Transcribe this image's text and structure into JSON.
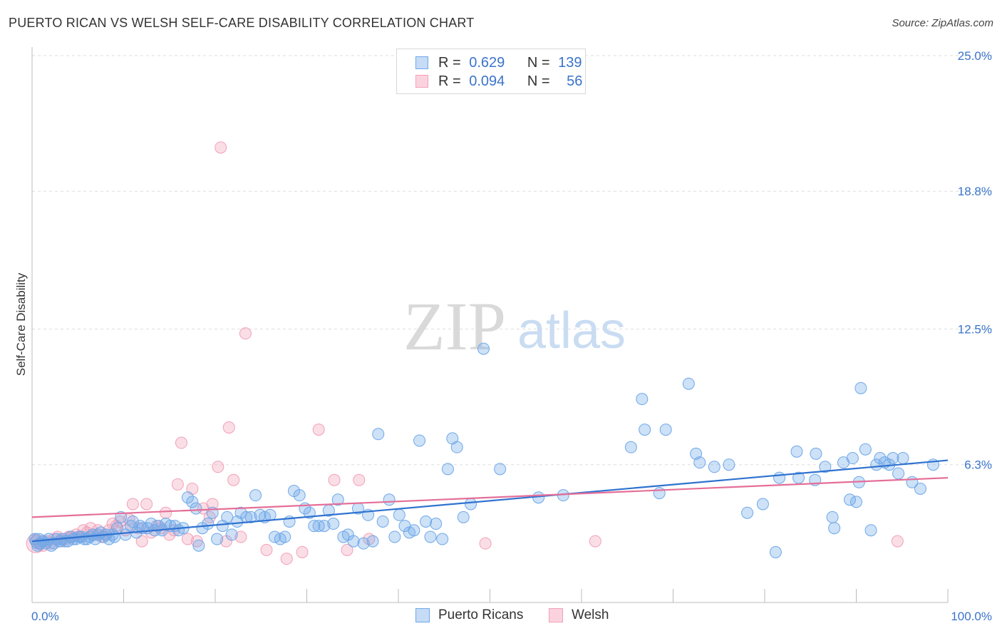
{
  "title": "PUERTO RICAN VS WELSH SELF-CARE DISABILITY CORRELATION CHART",
  "source": "Source: ZipAtlas.com",
  "watermark": {
    "zip": "ZIP",
    "atlas": "atlas"
  },
  "legend_top": [
    {
      "r_label": "R =",
      "r_value": "0.629",
      "n_label": "N =",
      "n_value": "139",
      "color": "#6fa8e8"
    },
    {
      "r_label": "R =",
      "r_value": "0.094",
      "n_label": "N =",
      "n_value": "56",
      "color": "#f2a0b8"
    }
  ],
  "legend_bottom": [
    {
      "label": "Puerto Ricans",
      "color": "#6fa8e8"
    },
    {
      "label": "Welsh",
      "color": "#f2a0b8"
    }
  ],
  "chart_data": {
    "type": "scatter",
    "title": "PUERTO RICAN VS WELSH SELF-CARE DISABILITY CORRELATION CHART",
    "xlabel": "",
    "ylabel": "Self-Care Disability",
    "xlim": [
      0,
      100
    ],
    "ylim": [
      0,
      25
    ],
    "x_tick_labels": [
      "0.0%",
      "100.0%"
    ],
    "y_ticks": [
      6.3,
      12.5,
      18.8,
      25.0
    ],
    "y_tick_labels": [
      "6.3%",
      "12.5%",
      "18.8%",
      "25.0%"
    ],
    "grid": true,
    "series": [
      {
        "name": "Puerto Ricans",
        "color": "#6fa8e8",
        "trend_color": "#2f72d0",
        "trend": [
          [
            0,
            2.8
          ],
          [
            100,
            6.5
          ]
        ],
        "points": [
          [
            0.3,
            2.9
          ],
          [
            0.6,
            2.6
          ],
          [
            0.9,
            2.7
          ],
          [
            1.2,
            2.8
          ],
          [
            1.5,
            2.7
          ],
          [
            1.8,
            2.9
          ],
          [
            2.1,
            2.6
          ],
          [
            2.4,
            2.7
          ],
          [
            2.7,
            2.9
          ],
          [
            3.0,
            2.8
          ],
          [
            3.3,
            2.9
          ],
          [
            3.6,
            2.8
          ],
          [
            3.9,
            2.8
          ],
          [
            4.2,
            3.0
          ],
          [
            4.5,
            2.9
          ],
          [
            4.8,
            2.9
          ],
          [
            5.1,
            3.0
          ],
          [
            5.4,
            3.0
          ],
          [
            5.7,
            2.9
          ],
          [
            6.0,
            2.9
          ],
          [
            6.3,
            3.0
          ],
          [
            6.6,
            3.1
          ],
          [
            6.9,
            2.9
          ],
          [
            7.2,
            3.1
          ],
          [
            7.5,
            3.2
          ],
          [
            7.8,
            3.0
          ],
          [
            8.1,
            3.1
          ],
          [
            8.4,
            2.9
          ],
          [
            8.8,
            3.1
          ],
          [
            9.0,
            3.0
          ],
          [
            9.3,
            3.4
          ],
          [
            9.7,
            3.9
          ],
          [
            10.2,
            3.1
          ],
          [
            10.8,
            3.5
          ],
          [
            11.0,
            3.7
          ],
          [
            11.4,
            3.2
          ],
          [
            11.8,
            3.5
          ],
          [
            12.1,
            3.4
          ],
          [
            12.6,
            3.4
          ],
          [
            13.0,
            3.6
          ],
          [
            13.4,
            3.3
          ],
          [
            13.8,
            3.5
          ],
          [
            14.2,
            3.3
          ],
          [
            14.6,
            3.6
          ],
          [
            15.1,
            3.5
          ],
          [
            15.6,
            3.5
          ],
          [
            16.0,
            3.3
          ],
          [
            16.5,
            3.4
          ],
          [
            17.0,
            4.8
          ],
          [
            17.5,
            4.6
          ],
          [
            17.9,
            4.3
          ],
          [
            18.2,
            2.6
          ],
          [
            18.6,
            3.4
          ],
          [
            19.2,
            3.6
          ],
          [
            19.7,
            4.1
          ],
          [
            20.2,
            2.9
          ],
          [
            20.8,
            3.5
          ],
          [
            21.3,
            3.9
          ],
          [
            21.8,
            3.1
          ],
          [
            22.4,
            3.7
          ],
          [
            22.8,
            4.1
          ],
          [
            23.4,
            3.9
          ],
          [
            23.9,
            3.9
          ],
          [
            24.4,
            4.9
          ],
          [
            24.9,
            4.0
          ],
          [
            25.4,
            3.9
          ],
          [
            26.0,
            4.0
          ],
          [
            26.5,
            3.0
          ],
          [
            27.1,
            2.9
          ],
          [
            27.6,
            3.0
          ],
          [
            28.1,
            3.7
          ],
          [
            28.6,
            5.1
          ],
          [
            29.2,
            4.9
          ],
          [
            29.8,
            4.3
          ],
          [
            30.3,
            4.1
          ],
          [
            30.8,
            3.5
          ],
          [
            31.3,
            3.5
          ],
          [
            31.9,
            3.5
          ],
          [
            32.4,
            4.2
          ],
          [
            32.9,
            3.6
          ],
          [
            33.4,
            4.7
          ],
          [
            34.0,
            3.0
          ],
          [
            34.5,
            3.1
          ],
          [
            35.1,
            2.8
          ],
          [
            35.6,
            4.3
          ],
          [
            36.2,
            2.7
          ],
          [
            36.7,
            4.0
          ],
          [
            37.2,
            2.8
          ],
          [
            37.8,
            7.7
          ],
          [
            38.3,
            3.7
          ],
          [
            39.0,
            4.7
          ],
          [
            39.6,
            3.0
          ],
          [
            40.1,
            4.0
          ],
          [
            40.7,
            3.5
          ],
          [
            41.2,
            3.2
          ],
          [
            41.7,
            3.3
          ],
          [
            42.3,
            7.4
          ],
          [
            43.0,
            3.7
          ],
          [
            43.5,
            3.0
          ],
          [
            44.1,
            3.6
          ],
          [
            44.8,
            2.9
          ],
          [
            45.4,
            6.1
          ],
          [
            45.9,
            7.5
          ],
          [
            46.4,
            7.1
          ],
          [
            47.1,
            3.9
          ],
          [
            47.9,
            4.5
          ],
          [
            49.3,
            11.6
          ],
          [
            51.1,
            6.1
          ],
          [
            55.3,
            4.8
          ],
          [
            58.0,
            4.9
          ],
          [
            65.4,
            7.1
          ],
          [
            66.6,
            9.3
          ],
          [
            66.9,
            7.9
          ],
          [
            68.5,
            5.0
          ],
          [
            69.2,
            7.9
          ],
          [
            71.7,
            10.0
          ],
          [
            72.5,
            6.8
          ],
          [
            72.9,
            6.4
          ],
          [
            74.5,
            6.2
          ],
          [
            76.1,
            6.3
          ],
          [
            78.1,
            4.1
          ],
          [
            79.8,
            4.5
          ],
          [
            81.2,
            2.3
          ],
          [
            81.6,
            5.7
          ],
          [
            83.5,
            6.9
          ],
          [
            83.7,
            5.7
          ],
          [
            85.5,
            5.6
          ],
          [
            85.6,
            6.8
          ],
          [
            86.6,
            6.2
          ],
          [
            87.4,
            3.9
          ],
          [
            87.6,
            3.4
          ],
          [
            88.6,
            6.4
          ],
          [
            89.3,
            4.7
          ],
          [
            89.6,
            6.6
          ],
          [
            90.0,
            4.6
          ],
          [
            90.3,
            5.5
          ],
          [
            90.5,
            9.8
          ],
          [
            91.0,
            7.0
          ],
          [
            91.6,
            3.3
          ],
          [
            92.2,
            6.3
          ],
          [
            92.6,
            6.6
          ],
          [
            93.1,
            6.4
          ],
          [
            93.6,
            6.3
          ],
          [
            94.0,
            6.6
          ],
          [
            94.6,
            5.9
          ],
          [
            95.1,
            6.6
          ],
          [
            96.1,
            5.5
          ],
          [
            97.0,
            5.2
          ],
          [
            98.4,
            6.3
          ]
        ]
      },
      {
        "name": "Welsh",
        "color": "#f2a0b8",
        "trend_color": "#e46f98",
        "trend": [
          [
            0,
            3.9
          ],
          [
            100,
            5.7
          ]
        ],
        "points": [
          [
            0.4,
            2.8
          ],
          [
            0.8,
            2.7
          ],
          [
            1.2,
            2.6
          ],
          [
            1.6,
            2.8
          ],
          [
            2.0,
            2.7
          ],
          [
            2.4,
            2.9
          ],
          [
            2.8,
            3.0
          ],
          [
            3.2,
            2.8
          ],
          [
            3.6,
            2.9
          ],
          [
            4.0,
            3.0
          ],
          [
            4.4,
            3.0
          ],
          [
            4.8,
            3.1
          ],
          [
            5.2,
            3.0
          ],
          [
            5.6,
            3.3
          ],
          [
            6.0,
            3.2
          ],
          [
            6.4,
            3.4
          ],
          [
            6.8,
            3.1
          ],
          [
            7.2,
            3.3
          ],
          [
            7.6,
            3.0
          ],
          [
            8.0,
            3.1
          ],
          [
            8.4,
            3.3
          ],
          [
            8.8,
            3.6
          ],
          [
            9.2,
            3.5
          ],
          [
            9.6,
            3.7
          ],
          [
            10.2,
            3.3
          ],
          [
            10.6,
            3.8
          ],
          [
            11.0,
            4.5
          ],
          [
            11.6,
            3.4
          ],
          [
            12.0,
            2.8
          ],
          [
            12.5,
            4.5
          ],
          [
            13.0,
            3.2
          ],
          [
            13.6,
            3.5
          ],
          [
            14.1,
            3.4
          ],
          [
            14.6,
            4.1
          ],
          [
            15.0,
            3.1
          ],
          [
            15.5,
            3.3
          ],
          [
            15.9,
            5.4
          ],
          [
            16.3,
            7.3
          ],
          [
            17.0,
            2.9
          ],
          [
            17.5,
            5.2
          ],
          [
            18.0,
            2.8
          ],
          [
            18.7,
            4.3
          ],
          [
            19.4,
            3.9
          ],
          [
            19.7,
            4.5
          ],
          [
            20.3,
            6.2
          ],
          [
            20.6,
            20.8
          ],
          [
            21.2,
            2.8
          ],
          [
            21.5,
            8.0
          ],
          [
            22.0,
            5.6
          ],
          [
            22.8,
            3.0
          ],
          [
            23.3,
            12.3
          ],
          [
            25.6,
            2.4
          ],
          [
            27.8,
            2.0
          ],
          [
            29.5,
            2.3
          ],
          [
            31.3,
            7.9
          ],
          [
            33.0,
            5.6
          ],
          [
            34.4,
            2.4
          ],
          [
            35.7,
            5.6
          ],
          [
            36.8,
            2.9
          ],
          [
            49.5,
            2.7
          ],
          [
            61.5,
            2.8
          ],
          [
            94.5,
            2.8
          ]
        ]
      }
    ]
  }
}
